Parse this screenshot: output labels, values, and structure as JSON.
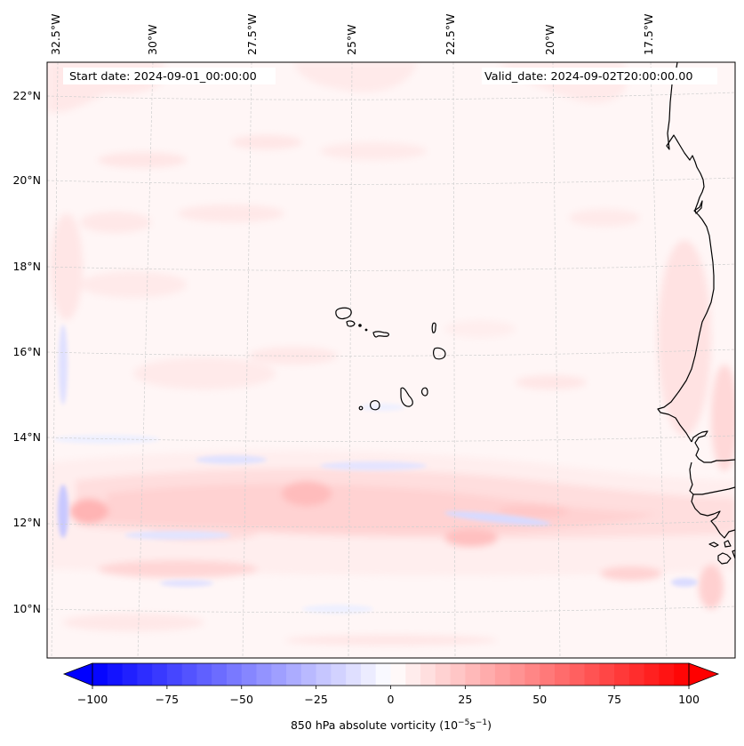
{
  "map": {
    "type": "contourf",
    "variable": "850 hPa absolute vorticity",
    "units_label": "850 hPa absolute vorticity (10",
    "units_exp1": "−5",
    "units_mid": "s",
    "units_exp2": "−1",
    "units_close": ")",
    "start_date_label": "Start date: 2024-09-01_00:00:00",
    "valid_date_label": "Valid_date: 2024-09-02T20:00:00.00",
    "lon_ticks": [
      "32.5°W",
      "30°W",
      "27.5°W",
      "25°W",
      "22.5°W",
      "20°W",
      "17.5°W"
    ],
    "lat_ticks": [
      "22°N",
      "20°N",
      "18°N",
      "16°N",
      "14°N",
      "12°N",
      "10°N"
    ],
    "extent": {
      "lon_min": -33.5,
      "lon_max": -15.7,
      "lat_min": 8.9,
      "lat_max": 22.8
    },
    "features": [
      "Cape Verde islands",
      "West African coastline (Mauritania, Senegal, Gambia, Guinea-Bissau)"
    ]
  },
  "colorbar": {
    "cmap": "bwr",
    "vmin": -100,
    "vmax": 100,
    "levels_step": 5,
    "extend": "both",
    "tick_labels": [
      "−100",
      "−75",
      "−50",
      "−25",
      "0",
      "25",
      "50",
      "75",
      "100"
    ],
    "tick_values": [
      -100,
      -75,
      -50,
      -25,
      0,
      25,
      50,
      75,
      100
    ]
  },
  "chart_data": {
    "type": "heatmap",
    "title": "",
    "annotations": [
      "Start date: 2024-09-01_00:00:00",
      "Valid_date: 2024-09-02T20:00:00.00"
    ],
    "xlabel": "",
    "ylabel": "",
    "x_tick_labels": [
      "32.5°W",
      "30°W",
      "27.5°W",
      "25°W",
      "22.5°W",
      "20°W",
      "17.5°W"
    ],
    "y_tick_labels": [
      "22°N",
      "20°N",
      "18°N",
      "16°N",
      "14°N",
      "12°N",
      "10°N"
    ],
    "colorbar_label": "850 hPa absolute vorticity (10^-5 s^-1)",
    "colorbar_range": [
      -100,
      100
    ],
    "colorbar_ticks": [
      -100,
      -75,
      -50,
      -25,
      0,
      25,
      50,
      75,
      100
    ],
    "features": [
      {
        "name": "positive vorticity band",
        "lat": 12.2,
        "lon_from": -33,
        "lon_to": -16.5,
        "approx_value": 20
      },
      {
        "name": "local maximum",
        "lat": 12.4,
        "lon": -32.3,
        "approx_value": 30
      },
      {
        "name": "local maximum",
        "lat": 12.5,
        "lon": -25.5,
        "approx_value": 28
      },
      {
        "name": "local maximum",
        "lat": 11.8,
        "lon": -22.0,
        "approx_value": 25
      },
      {
        "name": "negative streak",
        "lat": 12.0,
        "lon_from": -22.5,
        "lon_to": -19.5,
        "approx_value": -12
      },
      {
        "name": "negative streak",
        "lat": 12.2,
        "lon": -33.1,
        "approx_value": -18
      },
      {
        "name": "negative streak",
        "lat": 15.6,
        "lon": -33.1,
        "approx_value": -12
      },
      {
        "name": "background",
        "approx_value": 5
      }
    ]
  }
}
